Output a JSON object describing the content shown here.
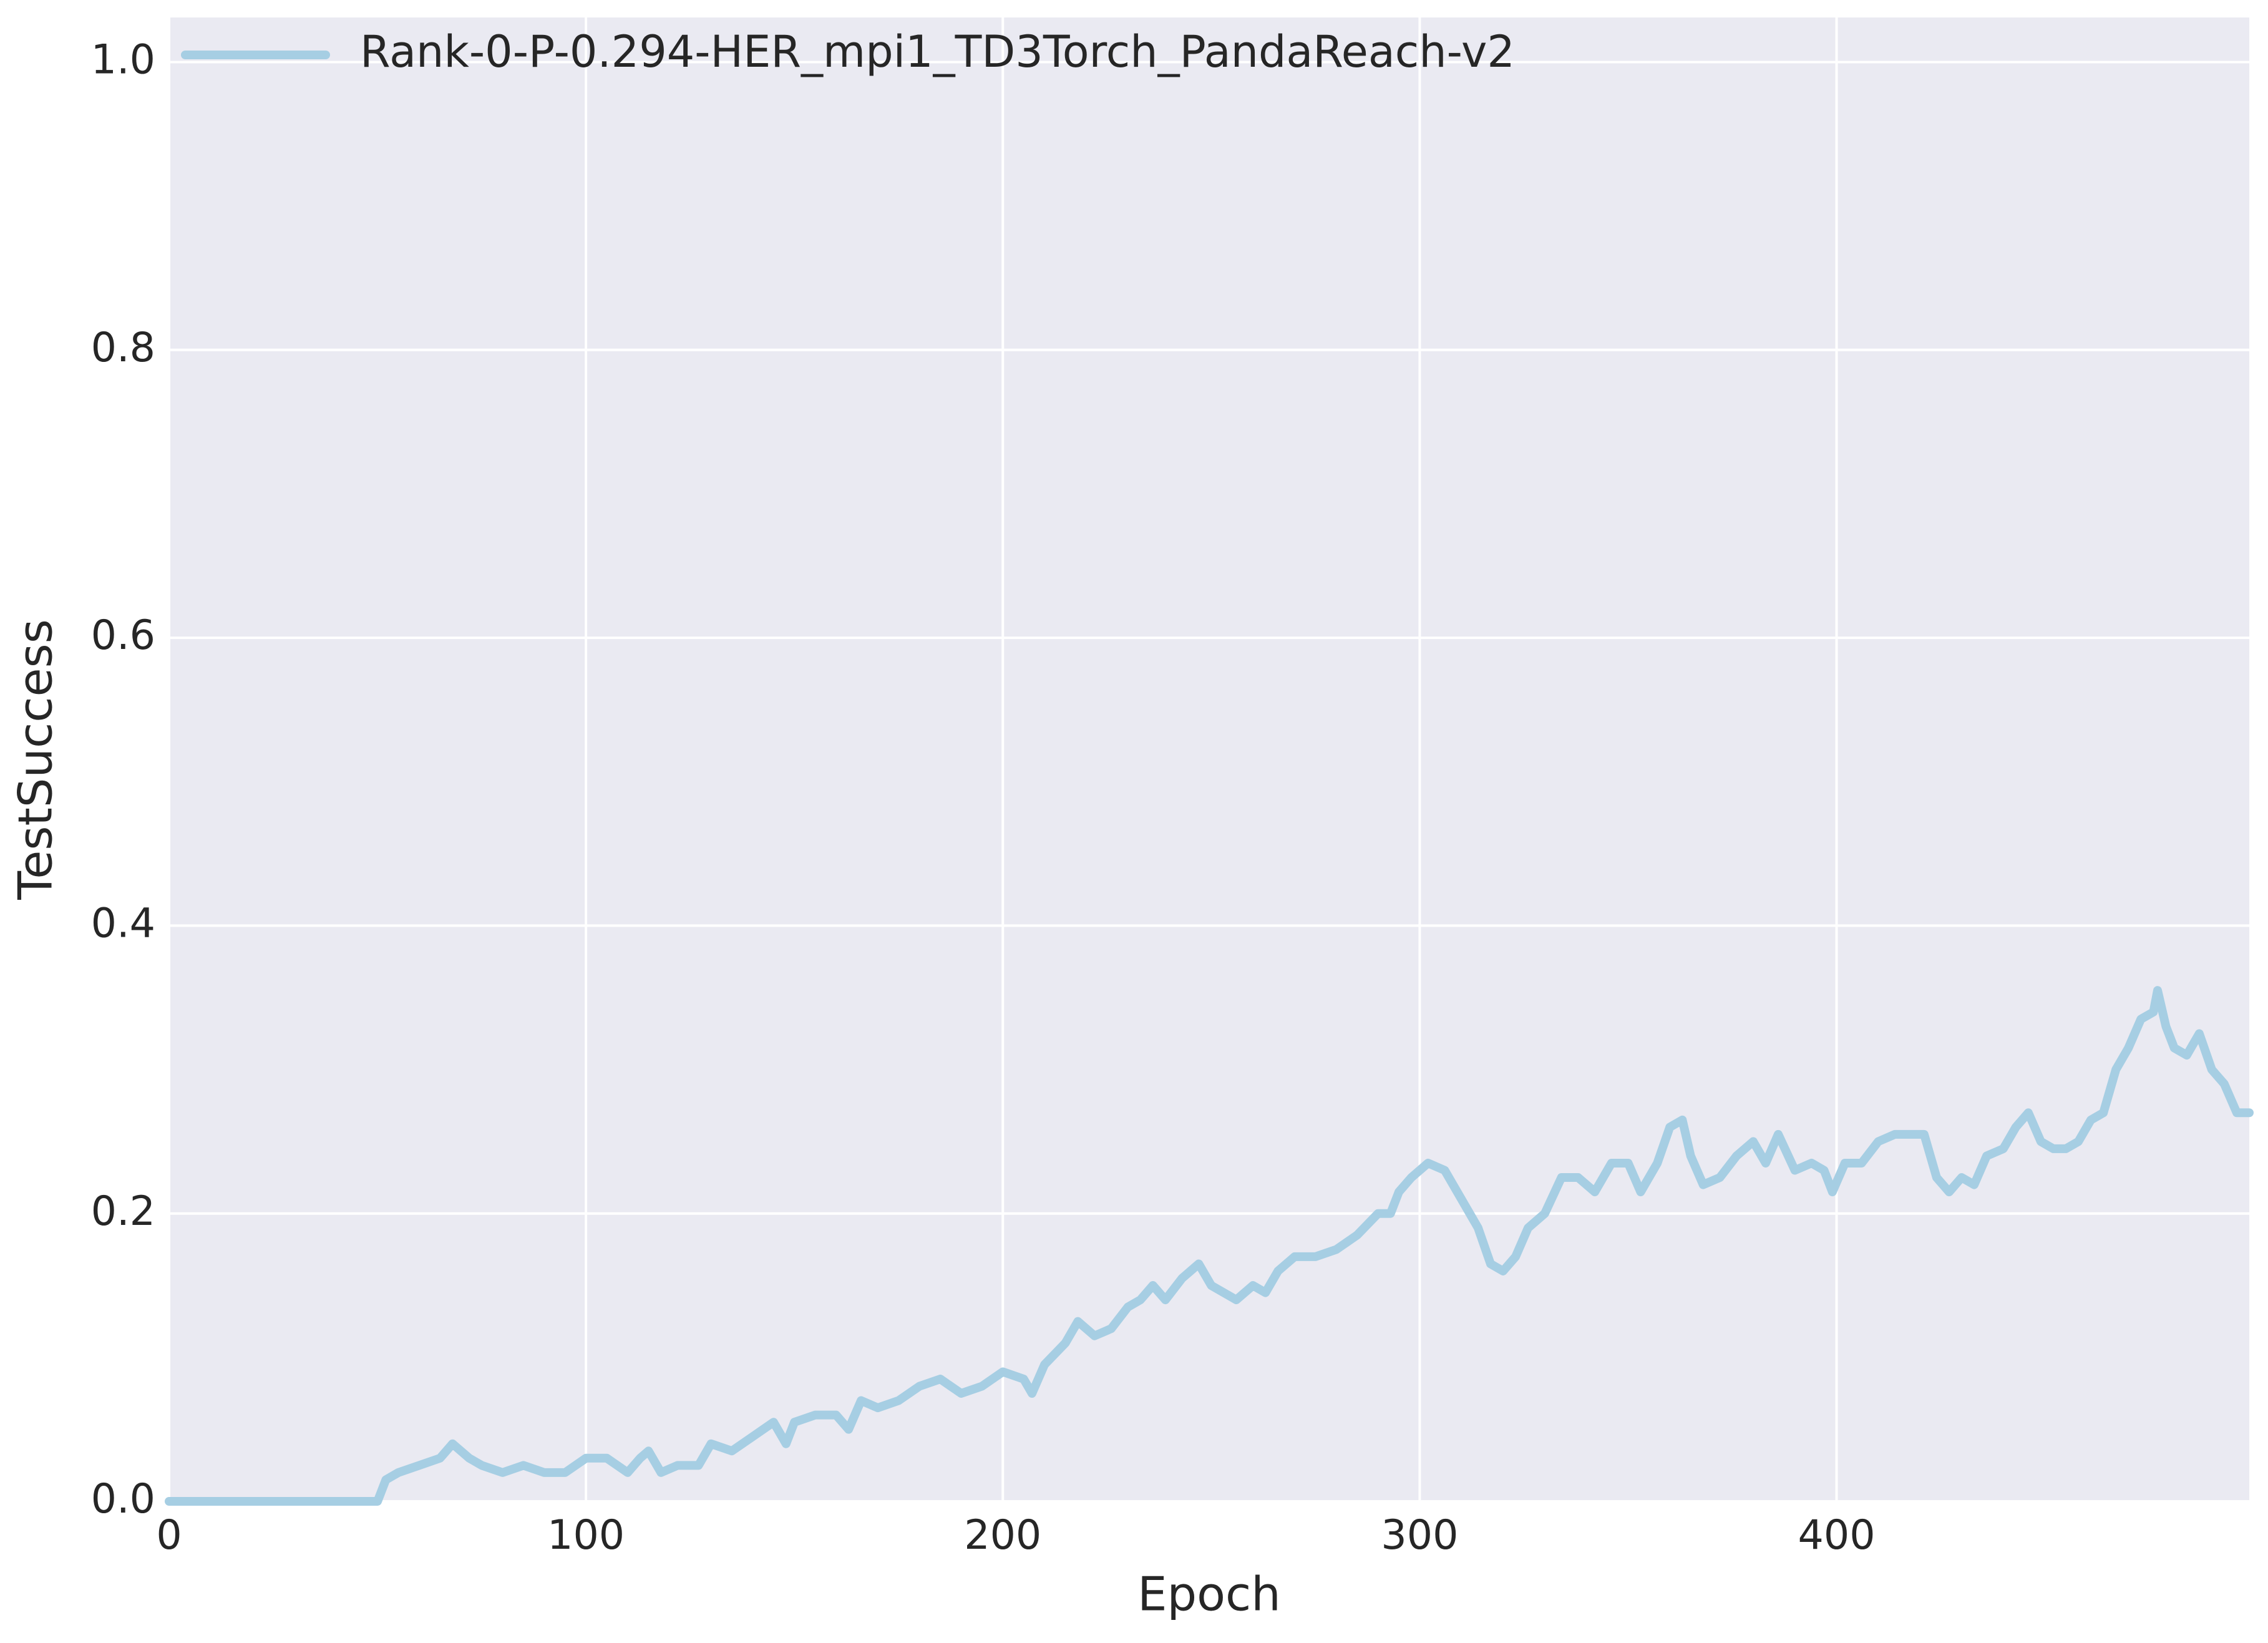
{
  "chart_data": {
    "type": "line",
    "xlabel": "Epoch",
    "ylabel": "TestSuccess",
    "x": [
      0,
      10,
      20,
      30,
      40,
      50,
      52,
      55,
      60,
      65,
      68,
      72,
      75,
      80,
      85,
      90,
      95,
      100,
      105,
      110,
      113,
      115,
      118,
      122,
      127,
      130,
      135,
      140,
      145,
      148,
      150,
      155,
      160,
      163,
      166,
      170,
      175,
      180,
      185,
      190,
      195,
      200,
      205,
      207,
      210,
      215,
      218,
      222,
      226,
      230,
      233,
      236,
      239,
      243,
      247,
      250,
      253,
      256,
      260,
      263,
      266,
      270,
      275,
      280,
      285,
      290,
      293,
      295,
      298,
      302,
      306,
      310,
      314,
      317,
      320,
      323,
      326,
      330,
      334,
      338,
      342,
      346,
      350,
      353,
      357,
      360,
      363,
      365,
      368,
      372,
      376,
      380,
      383,
      386,
      390,
      394,
      397,
      399,
      402,
      406,
      410,
      414,
      418,
      421,
      424,
      427,
      430,
      433,
      436,
      440,
      443,
      446,
      449,
      452,
      455,
      458,
      461,
      464,
      467,
      470,
      473,
      476,
      477,
      479,
      481,
      484,
      487,
      490,
      493,
      496,
      499
    ],
    "series": [
      {
        "name": "Rank-0-P-0.294-HER_mpi1_TD3Torch_PandaReach-v2",
        "color": "#a6cee3",
        "values": [
          0,
          0,
          0,
          0,
          0,
          0,
          0.015,
          0.02,
          0.025,
          0.03,
          0.04,
          0.03,
          0.025,
          0.02,
          0.025,
          0.02,
          0.02,
          0.03,
          0.03,
          0.02,
          0.03,
          0.035,
          0.02,
          0.025,
          0.025,
          0.04,
          0.035,
          0.045,
          0.055,
          0.04,
          0.055,
          0.06,
          0.06,
          0.05,
          0.07,
          0.065,
          0.07,
          0.08,
          0.085,
          0.075,
          0.08,
          0.09,
          0.085,
          0.075,
          0.095,
          0.11,
          0.125,
          0.115,
          0.12,
          0.135,
          0.14,
          0.15,
          0.14,
          0.155,
          0.165,
          0.15,
          0.145,
          0.14,
          0.15,
          0.145,
          0.16,
          0.17,
          0.17,
          0.175,
          0.185,
          0.2,
          0.2,
          0.215,
          0.225,
          0.235,
          0.23,
          0.21,
          0.19,
          0.165,
          0.16,
          0.17,
          0.19,
          0.2,
          0.225,
          0.225,
          0.215,
          0.235,
          0.235,
          0.215,
          0.235,
          0.26,
          0.265,
          0.24,
          0.22,
          0.225,
          0.24,
          0.25,
          0.235,
          0.255,
          0.23,
          0.235,
          0.23,
          0.215,
          0.235,
          0.235,
          0.25,
          0.255,
          0.255,
          0.255,
          0.225,
          0.215,
          0.225,
          0.22,
          0.24,
          0.245,
          0.26,
          0.27,
          0.25,
          0.245,
          0.245,
          0.25,
          0.265,
          0.27,
          0.3,
          0.315,
          0.335,
          0.34,
          0.355,
          0.33,
          0.315,
          0.31,
          0.325,
          0.3,
          0.29,
          0.27,
          0.27
        ]
      }
    ],
    "xlim": [
      0,
      499
    ],
    "ylim": [
      0,
      1.031
    ],
    "xticks": [
      0,
      100,
      200,
      300,
      400
    ],
    "yticks": [
      {
        "value": 0,
        "label": "0.0"
      },
      0.2,
      0.4,
      0.6,
      0.8,
      {
        "value": 1,
        "label": "1.0"
      }
    ],
    "grid": true,
    "legend": "upper left"
  }
}
